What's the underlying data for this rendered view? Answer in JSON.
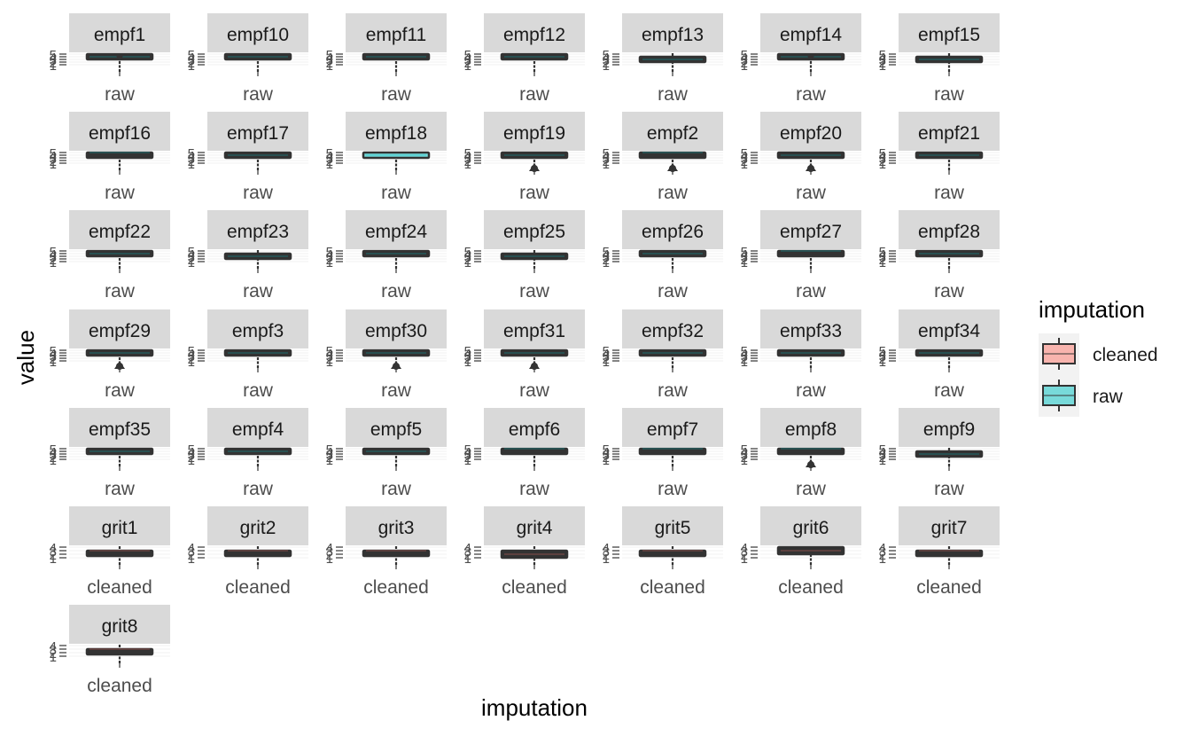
{
  "chart_data": {
    "type": "boxplot",
    "facet_layout": "wrap",
    "facet_columns": 7,
    "xlabel": "imputation",
    "ylabel": "value",
    "legend": {
      "title": "imputation",
      "position": "right",
      "items": [
        {
          "name": "cleaned",
          "color": "#F8B4AE"
        },
        {
          "name": "raw",
          "color": "#78DADA"
        }
      ]
    },
    "colors": {
      "cleaned": "#F8766D",
      "raw": "#00BFC4",
      "strip": "#D9D9D9",
      "box_line": "#333333"
    },
    "panels": [
      {
        "label": "empf1",
        "category": "raw",
        "y_ticks": [
          "5",
          "4",
          "3",
          "2",
          "1"
        ],
        "box": {
          "q1": 4,
          "median": 4,
          "q3": 5
        },
        "outliers": "top"
      },
      {
        "label": "empf10",
        "category": "raw",
        "y_ticks": [
          "5",
          "4",
          "3",
          "2",
          "1"
        ],
        "box": {
          "q1": 3,
          "median": 4,
          "q3": 5
        },
        "outliers": "none"
      },
      {
        "label": "empf11",
        "category": "raw",
        "y_ticks": [
          "5",
          "4",
          "3",
          "2",
          "1"
        ],
        "box": {
          "q1": 3,
          "median": 4,
          "q3": 5
        },
        "outliers": "none"
      },
      {
        "label": "empf12",
        "category": "raw",
        "y_ticks": [
          "5",
          "4",
          "3",
          "2",
          "1"
        ],
        "box": {
          "q1": 3,
          "median": 4,
          "q3": 5
        },
        "outliers": "none"
      },
      {
        "label": "empf13",
        "category": "raw",
        "y_ticks": [
          "5",
          "4",
          "3",
          "2",
          "1"
        ],
        "box": {
          "q1": 2,
          "median": 3,
          "q3": 4
        },
        "outliers": "none"
      },
      {
        "label": "empf14",
        "category": "raw",
        "y_ticks": [
          "5",
          "4",
          "3",
          "2",
          "1"
        ],
        "box": {
          "q1": 4,
          "median": 4,
          "q3": 5
        },
        "outliers": "top"
      },
      {
        "label": "empf15",
        "category": "raw",
        "y_ticks": [
          "5",
          "4",
          "3",
          "2",
          "1"
        ],
        "box": {
          "q1": 2,
          "median": 3,
          "q3": 4
        },
        "outliers": "none"
      },
      {
        "label": "empf16",
        "category": "raw",
        "y_ticks": [
          "5",
          "4",
          "3",
          "2",
          "1"
        ],
        "box": {
          "q1": 4,
          "median": 5,
          "q3": 5
        },
        "outliers": "none"
      },
      {
        "label": "empf17",
        "category": "raw",
        "y_ticks": [
          "5",
          "4",
          "3",
          "2",
          "1"
        ],
        "box": {
          "q1": 3,
          "median": 4,
          "q3": 5
        },
        "outliers": "none"
      },
      {
        "label": "empf18",
        "category": "raw",
        "y_ticks": [
          "5",
          "4",
          "3",
          "2",
          "1"
        ],
        "box": {
          "q1": 3,
          "median": 4,
          "q3": 5
        },
        "outliers": "none",
        "filled": true
      },
      {
        "label": "empf19",
        "category": "raw",
        "y_ticks": [
          "5",
          "4",
          "3",
          "2",
          "1"
        ],
        "box": {
          "q1": 4,
          "median": 4,
          "q3": 5
        },
        "outliers": "bottom"
      },
      {
        "label": "empf2",
        "category": "raw",
        "y_ticks": [
          "5",
          "4",
          "3",
          "2",
          "1"
        ],
        "box": {
          "q1": 4,
          "median": 5,
          "q3": 5
        },
        "outliers": "bottom"
      },
      {
        "label": "empf20",
        "category": "raw",
        "y_ticks": [
          "5",
          "4",
          "3",
          "2",
          "1"
        ],
        "box": {
          "q1": 4,
          "median": 4,
          "q3": 5
        },
        "outliers": "bottom"
      },
      {
        "label": "empf21",
        "category": "raw",
        "y_ticks": [
          "5",
          "4",
          "3",
          "2",
          "1"
        ],
        "box": {
          "q1": 3,
          "median": 4,
          "q3": 5
        },
        "outliers": "none"
      },
      {
        "label": "empf22",
        "category": "raw",
        "y_ticks": [
          "5",
          "4",
          "3",
          "2",
          "1"
        ],
        "box": {
          "q1": 3,
          "median": 4,
          "q3": 5
        },
        "outliers": "none"
      },
      {
        "label": "empf23",
        "category": "raw",
        "y_ticks": [
          "5",
          "4",
          "3",
          "2",
          "1"
        ],
        "box": {
          "q1": 2,
          "median": 3,
          "q3": 4
        },
        "outliers": "none"
      },
      {
        "label": "empf24",
        "category": "raw",
        "y_ticks": [
          "5",
          "4",
          "3",
          "2",
          "1"
        ],
        "box": {
          "q1": 3,
          "median": 4,
          "q3": 5
        },
        "outliers": "none"
      },
      {
        "label": "empf25",
        "category": "raw",
        "y_ticks": [
          "5",
          "4",
          "3",
          "2",
          "1"
        ],
        "box": {
          "q1": 2,
          "median": 3,
          "q3": 4
        },
        "outliers": "none"
      },
      {
        "label": "empf26",
        "category": "raw",
        "y_ticks": [
          "5",
          "4",
          "3",
          "2",
          "1"
        ],
        "box": {
          "q1": 3,
          "median": 4,
          "q3": 5
        },
        "outliers": "none"
      },
      {
        "label": "empf27",
        "category": "raw",
        "y_ticks": [
          "5",
          "4",
          "3",
          "2",
          "1"
        ],
        "box": {
          "q1": 4,
          "median": 5,
          "q3": 5
        },
        "outliers": "none"
      },
      {
        "label": "empf28",
        "category": "raw",
        "y_ticks": [
          "5",
          "4",
          "3",
          "2",
          "1"
        ],
        "box": {
          "q1": 3,
          "median": 4,
          "q3": 5
        },
        "outliers": "none"
      },
      {
        "label": "empf29",
        "category": "raw",
        "y_ticks": [
          "5",
          "4",
          "3",
          "2",
          "1"
        ],
        "box": {
          "q1": 4,
          "median": 4,
          "q3": 5
        },
        "outliers": "bottom"
      },
      {
        "label": "empf3",
        "category": "raw",
        "y_ticks": [
          "5",
          "4",
          "3",
          "2",
          "1"
        ],
        "box": {
          "q1": 3,
          "median": 4,
          "q3": 5
        },
        "outliers": "none"
      },
      {
        "label": "empf30",
        "category": "raw",
        "y_ticks": [
          "5",
          "4",
          "3",
          "2",
          "1"
        ],
        "box": {
          "q1": 4,
          "median": 4,
          "q3": 5
        },
        "outliers": "bottom"
      },
      {
        "label": "empf31",
        "category": "raw",
        "y_ticks": [
          "5",
          "4",
          "3",
          "2",
          "1"
        ],
        "box": {
          "q1": 4,
          "median": 4,
          "q3": 5
        },
        "outliers": "bottom"
      },
      {
        "label": "empf32",
        "category": "raw",
        "y_ticks": [
          "5",
          "4",
          "3",
          "2",
          "1"
        ],
        "box": {
          "q1": 3,
          "median": 4,
          "q3": 5
        },
        "outliers": "none"
      },
      {
        "label": "empf33",
        "category": "raw",
        "y_ticks": [
          "5",
          "4",
          "3",
          "2",
          "1"
        ],
        "box": {
          "q1": 3,
          "median": 4,
          "q3": 5
        },
        "outliers": "none"
      },
      {
        "label": "empf34",
        "category": "raw",
        "y_ticks": [
          "5",
          "4",
          "3",
          "2",
          "1"
        ],
        "box": {
          "q1": 3,
          "median": 4,
          "q3": 5
        },
        "outliers": "none"
      },
      {
        "label": "empf35",
        "category": "raw",
        "y_ticks": [
          "5",
          "4",
          "3",
          "2",
          "1"
        ],
        "box": {
          "q1": 3,
          "median": 4,
          "q3": 5
        },
        "outliers": "none"
      },
      {
        "label": "empf4",
        "category": "raw",
        "y_ticks": [
          "5",
          "4",
          "3",
          "2",
          "1"
        ],
        "box": {
          "q1": 3,
          "median": 4,
          "q3": 5
        },
        "outliers": "none"
      },
      {
        "label": "empf5",
        "category": "raw",
        "y_ticks": [
          "5",
          "4",
          "3",
          "2",
          "1"
        ],
        "box": {
          "q1": 3,
          "median": 4,
          "q3": 5
        },
        "outliers": "none"
      },
      {
        "label": "empf6",
        "category": "raw",
        "y_ticks": [
          "5",
          "4",
          "3",
          "2",
          "1"
        ],
        "box": {
          "q1": 4,
          "median": 5,
          "q3": 5
        },
        "outliers": "none"
      },
      {
        "label": "empf7",
        "category": "raw",
        "y_ticks": [
          "5",
          "4",
          "3",
          "2",
          "1"
        ],
        "box": {
          "q1": 4,
          "median": 5,
          "q3": 5
        },
        "outliers": "none"
      },
      {
        "label": "empf8",
        "category": "raw",
        "y_ticks": [
          "5",
          "4",
          "3",
          "2",
          "1"
        ],
        "box": {
          "q1": 4,
          "median": 5,
          "q3": 5
        },
        "outliers": "bottom"
      },
      {
        "label": "empf9",
        "category": "raw",
        "y_ticks": [
          "5",
          "4",
          "3",
          "2",
          "1"
        ],
        "box": {
          "q1": 2,
          "median": 3,
          "q3": 4
        },
        "outliers": "none"
      },
      {
        "label": "grit1",
        "category": "cleaned",
        "y_ticks": [
          "4",
          "3",
          "2",
          "1"
        ],
        "box": {
          "q1": 2,
          "median": 3,
          "q3": 3
        },
        "outliers": "none"
      },
      {
        "label": "grit2",
        "category": "cleaned",
        "y_ticks": [
          "4",
          "3",
          "2",
          "1"
        ],
        "box": {
          "q1": 2,
          "median": 3,
          "q3": 3
        },
        "outliers": "none"
      },
      {
        "label": "grit3",
        "category": "cleaned",
        "y_ticks": [
          "4",
          "3",
          "2",
          "1"
        ],
        "box": {
          "q1": 2,
          "median": 3,
          "q3": 3
        },
        "outliers": "none"
      },
      {
        "label": "grit4",
        "category": "cleaned",
        "y_ticks": [
          "4",
          "3",
          "2",
          "1"
        ],
        "box": {
          "q1": 1,
          "median": 2,
          "q3": 3
        },
        "outliers": "none"
      },
      {
        "label": "grit5",
        "category": "cleaned",
        "y_ticks": [
          "4",
          "3",
          "2",
          "1"
        ],
        "box": {
          "q1": 2,
          "median": 3,
          "q3": 3
        },
        "outliers": "none"
      },
      {
        "label": "grit6",
        "category": "cleaned",
        "y_ticks": [
          "4",
          "3",
          "2",
          "1"
        ],
        "box": {
          "q1": 2,
          "median": 3,
          "q3": 4
        },
        "outliers": "none"
      },
      {
        "label": "grit7",
        "category": "cleaned",
        "y_ticks": [
          "4",
          "3",
          "2",
          "1"
        ],
        "box": {
          "q1": 2,
          "median": 3,
          "q3": 3
        },
        "outliers": "none"
      },
      {
        "label": "grit8",
        "category": "cleaned",
        "y_ticks": [
          "4",
          "3",
          "2",
          "1"
        ],
        "box": {
          "q1": 2,
          "median": 3,
          "q3": 3
        },
        "outliers": "none"
      }
    ]
  }
}
